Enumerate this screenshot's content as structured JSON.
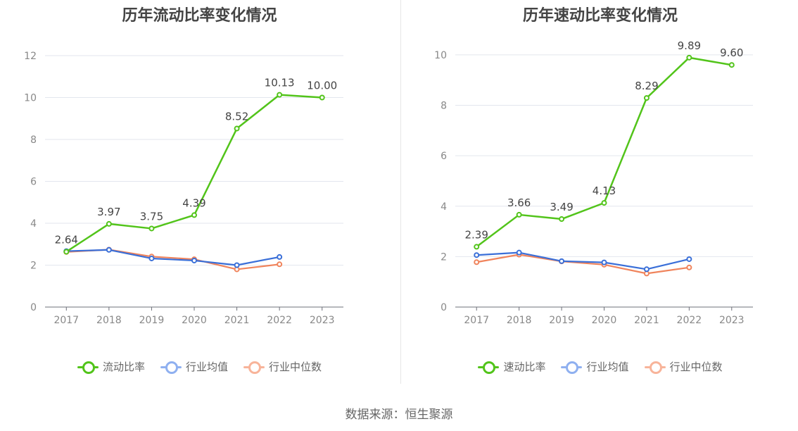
{
  "source": "数据来源：恒生聚源",
  "chart_data": [
    {
      "type": "line",
      "title": "历年流动比率变化情况",
      "categories": [
        "2017",
        "2018",
        "2019",
        "2020",
        "2021",
        "2022",
        "2023"
      ],
      "yticks": [
        "0",
        "2",
        "4",
        "6",
        "8",
        "10",
        "12"
      ],
      "ylim": [
        0,
        12
      ],
      "grid": true,
      "legend_position": "bottom",
      "series": [
        {
          "name": "流动比率",
          "color": "#52c41a",
          "values": [
            2.64,
            3.97,
            3.75,
            4.39,
            8.52,
            10.13,
            10.0
          ],
          "labels": [
            "2.64",
            "3.97",
            "3.75",
            "4.39",
            "8.52",
            "10.13",
            "10.00"
          ]
        },
        {
          "name": "行业均值",
          "color": "#3a6fd8",
          "legend_color": "#8fb0f0",
          "values": [
            2.67,
            2.73,
            2.32,
            2.22,
            2.0,
            2.39,
            null
          ]
        },
        {
          "name": "行业中位数",
          "color": "#f0845c",
          "legend_color": "#f8b49a",
          "values": [
            2.63,
            2.74,
            2.41,
            2.28,
            1.8,
            2.04,
            null
          ]
        }
      ]
    },
    {
      "type": "line",
      "title": "历年速动比率变化情况",
      "categories": [
        "2017",
        "2018",
        "2019",
        "2020",
        "2021",
        "2022",
        "2023"
      ],
      "yticks": [
        "0",
        "2",
        "4",
        "6",
        "8",
        "10"
      ],
      "ylim": [
        0,
        10.5
      ],
      "grid": true,
      "legend_position": "bottom",
      "series": [
        {
          "name": "速动比率",
          "color": "#52c41a",
          "values": [
            2.39,
            3.66,
            3.49,
            4.13,
            8.29,
            9.89,
            9.6
          ],
          "labels": [
            "2.39",
            "3.66",
            "3.49",
            "4.13",
            "8.29",
            "9.89",
            "9.60"
          ]
        },
        {
          "name": "行业均值",
          "color": "#3a6fd8",
          "legend_color": "#8fb0f0",
          "values": [
            2.06,
            2.16,
            1.82,
            1.77,
            1.5,
            1.9,
            null
          ]
        },
        {
          "name": "行业中位数",
          "color": "#f0845c",
          "legend_color": "#f8b49a",
          "values": [
            1.78,
            2.08,
            1.81,
            1.68,
            1.33,
            1.57,
            null
          ]
        }
      ]
    }
  ]
}
